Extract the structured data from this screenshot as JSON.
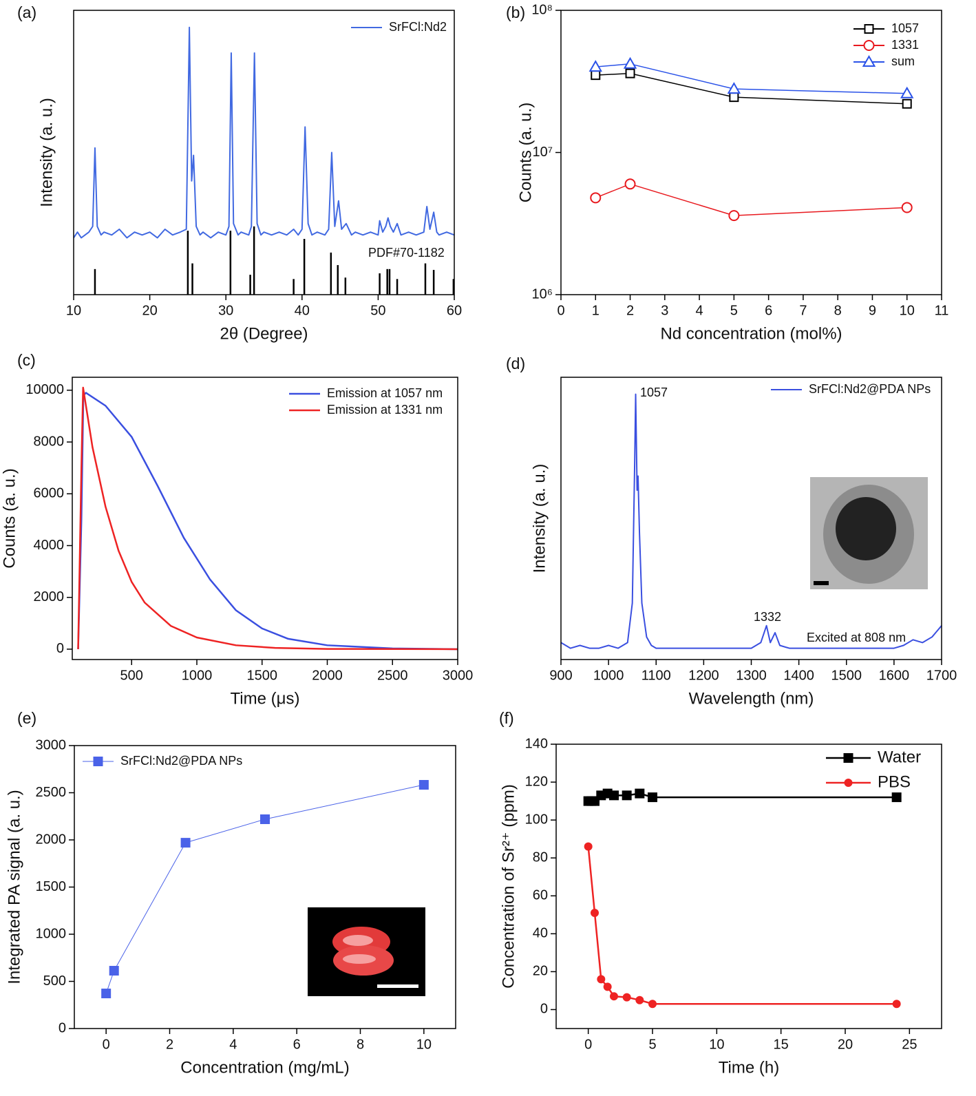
{
  "chart_data": [
    {
      "type": "line",
      "label": "(a)",
      "xlabel": "2θ (Degree)",
      "ylabel": "Intensity (a. u.)",
      "xlim": [
        10,
        60
      ],
      "xticks": [
        10,
        20,
        30,
        40,
        50,
        60
      ],
      "ylim": [
        0,
        100
      ],
      "series": [
        {
          "name": "SrFCl:Nd2",
          "color": "#4169e1",
          "width": 2,
          "x": [
            10,
            10.5,
            11,
            11.5,
            12,
            12.5,
            12.8,
            13.1,
            13.6,
            14,
            15,
            16,
            17,
            18,
            19,
            20,
            21,
            22,
            23,
            24,
            24.8,
            25.2,
            25.5,
            25.75,
            26.1,
            26.6,
            27,
            28,
            29,
            30,
            30.4,
            30.7,
            31,
            31.6,
            32,
            33,
            33.35,
            33.75,
            34.1,
            34.6,
            35,
            36,
            37,
            38,
            38.9,
            39.5,
            40,
            40.4,
            40.8,
            41.3,
            42,
            43,
            43.5,
            43.9,
            44.3,
            44.8,
            45.2,
            45.8,
            46.5,
            47,
            48,
            49,
            50,
            50.2,
            50.6,
            51,
            51.3,
            51.6,
            52,
            52.5,
            53,
            54,
            55,
            56,
            56.4,
            56.8,
            57.3,
            57.7,
            58,
            59,
            60
          ],
          "values": [
            20,
            22,
            20,
            21,
            22,
            24,
            51.6,
            24,
            21,
            22,
            21,
            23,
            20,
            22,
            21,
            22,
            20,
            23,
            21,
            22,
            23,
            94,
            40,
            49,
            24,
            21,
            22,
            20,
            22,
            21,
            24,
            85,
            25,
            21,
            22,
            21,
            24,
            85,
            25,
            21,
            22,
            21,
            22,
            21,
            23,
            21,
            23,
            59,
            25,
            21,
            22,
            21,
            23,
            50,
            24,
            33,
            23,
            25,
            21,
            22,
            21,
            22,
            21,
            26,
            22,
            24,
            27,
            24,
            22,
            25,
            21,
            22,
            21,
            22,
            31,
            23,
            29,
            22,
            21,
            22,
            21
          ]
        }
      ],
      "reference": {
        "color": "#000000",
        "x": [
          12.8,
          25.0,
          25.6,
          30.6,
          33.2,
          33.7,
          38.9,
          40.3,
          43.8,
          44.7,
          45.7,
          50.2,
          51.2,
          51.5,
          52.5,
          56.2,
          57.3,
          59.9
        ],
        "values": [
          9,
          22.5,
          11,
          22.5,
          7,
          24,
          5.5,
          19.6,
          14.8,
          10.4,
          6,
          7.5,
          9,
          9,
          5.5,
          11,
          8.7,
          5.5
        ]
      },
      "annotations": [
        "PDF#70-1182"
      ]
    },
    {
      "type": "line",
      "label": "(b)",
      "xlabel": "Nd concentration (mol%)",
      "ylabel": "Counts (a. u.)",
      "log_y": true,
      "xlim": [
        0,
        11
      ],
      "xticks": [
        0,
        1,
        2,
        3,
        4,
        5,
        6,
        7,
        8,
        9,
        10,
        11
      ],
      "ylim": [
        1000000,
        100000000
      ],
      "yticks": [
        {
          "value": 1000000,
          "label": "10⁶"
        },
        {
          "value": 10000000,
          "label": "10⁷"
        },
        {
          "value": 100000000,
          "label": "10⁸"
        }
      ],
      "series": [
        {
          "name": "1057",
          "color": "#000000",
          "marker": "square",
          "filled": false,
          "x": [
            1,
            2,
            5,
            10
          ],
          "values": [
            35000000,
            36000000,
            24500000,
            22000000
          ]
        },
        {
          "name": "1331",
          "color": "#e8191e",
          "marker": "circle",
          "filled": false,
          "x": [
            1,
            2,
            5,
            10
          ],
          "values": [
            4800000,
            6000000,
            3600000,
            4100000
          ]
        },
        {
          "name": "sum",
          "color": "#2a52e8",
          "marker": "triangle",
          "filled": false,
          "x": [
            1,
            2,
            5,
            10
          ],
          "values": [
            40000000,
            42000000,
            28000000,
            26000000
          ]
        }
      ]
    },
    {
      "type": "line",
      "label": "(c)",
      "xlabel": "Time (μs)",
      "ylabel": "Counts (a. u.)",
      "xlim": [
        45,
        3000
      ],
      "xticks": [
        500,
        1000,
        1500,
        2000,
        2500,
        3000
      ],
      "ylim": [
        -400,
        10500
      ],
      "yticks": [
        0,
        2000,
        4000,
        6000,
        8000,
        10000
      ],
      "series": [
        {
          "name": "Emission at 1057 nm",
          "color": "#3a4fe0",
          "width": 2.5,
          "x": [
            90,
            115,
            130,
            150,
            300,
            500,
            700,
            900,
            1100,
            1300,
            1500,
            1700,
            2000,
            2500,
            3000
          ],
          "values": [
            0,
            5000,
            9800,
            9900,
            9400,
            8200,
            6300,
            4300,
            2700,
            1500,
            800,
            400,
            150,
            30,
            0
          ]
        },
        {
          "name": "Emission at 1331 nm",
          "color": "#ee2323",
          "width": 2.5,
          "x": [
            90,
            115,
            128,
            200,
            300,
            400,
            500,
            600,
            800,
            1000,
            1300,
            1600,
            2000,
            3000
          ],
          "values": [
            0,
            7000,
            10100,
            7800,
            5500,
            3800,
            2600,
            1800,
            900,
            450,
            150,
            50,
            10,
            0
          ]
        }
      ]
    },
    {
      "type": "line",
      "label": "(d)",
      "xlabel": "Wavelength (nm)",
      "ylabel": "Intensity (a. u.)",
      "xlim": [
        900,
        1700
      ],
      "xticks": [
        900,
        1000,
        1100,
        1200,
        1300,
        1400,
        1500,
        1600,
        1700
      ],
      "ylim": [
        0,
        100
      ],
      "series": [
        {
          "name": "SrFCl:Nd2@PDA NPs",
          "color": "#3a4fe0",
          "width": 2,
          "x": [
            900,
            920,
            940,
            960,
            980,
            1000,
            1020,
            1040,
            1050,
            1055,
            1057,
            1060,
            1062,
            1065,
            1070,
            1080,
            1090,
            1100,
            1120,
            1150,
            1200,
            1250,
            1300,
            1320,
            1332,
            1340,
            1350,
            1360,
            1380,
            1400,
            1450,
            1500,
            1550,
            1600,
            1620,
            1640,
            1660,
            1680,
            1690,
            1700
          ],
          "values": [
            6,
            4,
            5,
            4,
            4,
            5,
            4,
            6,
            20,
            70,
            94,
            60,
            65,
            45,
            20,
            8,
            5,
            4,
            4,
            4,
            4,
            4,
            4,
            6,
            12,
            6,
            9.5,
            5,
            4,
            4,
            4,
            4,
            4,
            4,
            5,
            7,
            6,
            8,
            10,
            12
          ]
        }
      ],
      "annotations": [
        "1057",
        "1332",
        "Excited at 808 nm"
      ]
    },
    {
      "type": "line",
      "label": "(e)",
      "xlabel": "Concentration (mg/mL)",
      "ylabel": "Integrated PA signal (a. u.)",
      "xlim": [
        -1,
        11
      ],
      "xticks": [
        0,
        2,
        4,
        6,
        8,
        10
      ],
      "ylim": [
        0,
        3000
      ],
      "yticks": [
        0,
        500,
        1000,
        1500,
        2000,
        2500,
        3000
      ],
      "series": [
        {
          "name": "SrFCl:Nd2@PDA NPs",
          "color": "#4a62e8",
          "width": 1,
          "marker": "square",
          "filled": true,
          "x": [
            0,
            0.25,
            2.5,
            5,
            10
          ],
          "values": [
            372,
            613,
            1970,
            2219,
            2584
          ]
        }
      ]
    },
    {
      "type": "line",
      "label": "(f)",
      "xlabel": "Time (h)",
      "ylabel": "Concentration of Sr²⁺ (ppm)",
      "xlim": [
        -2.5,
        27.5
      ],
      "xticks": [
        0,
        5,
        10,
        15,
        20,
        25
      ],
      "ylim": [
        -10,
        140
      ],
      "yticks": [
        0,
        20,
        40,
        60,
        80,
        100,
        120,
        140
      ],
      "series": [
        {
          "name": "Water",
          "color": "#000000",
          "width": 2.5,
          "marker": "square",
          "filled": true,
          "x": [
            0,
            0.25,
            0.5,
            1,
            1.5,
            2,
            3,
            4,
            5,
            24
          ],
          "values": [
            110,
            110,
            110,
            113,
            114,
            113,
            113,
            114,
            112,
            112
          ]
        },
        {
          "name": "PBS",
          "color": "#ee2323",
          "width": 2.5,
          "marker": "circle",
          "filled": true,
          "x": [
            0,
            0.5,
            1,
            1.5,
            2,
            3,
            4,
            5,
            24
          ],
          "values": [
            86,
            51,
            16,
            12,
            7,
            6.5,
            5,
            3,
            3
          ]
        }
      ]
    }
  ]
}
